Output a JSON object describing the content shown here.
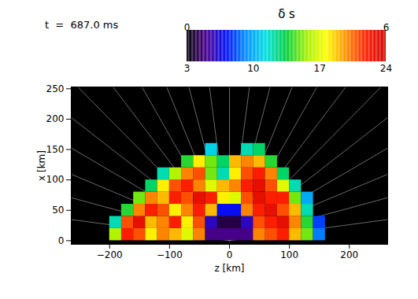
{
  "chart_data": {
    "type": "heatmap",
    "title": "t  =  687.0 ms",
    "xlabel": "z [km]",
    "ylabel": "x [km]",
    "xlim": [
      -264,
      264
    ],
    "xticks": [
      -200,
      -100,
      0,
      100,
      200
    ],
    "ylim": [
      -6,
      253
    ],
    "yticks": [
      0,
      50,
      100,
      150,
      200,
      250
    ],
    "cells": {
      "z": [
        -190,
        -170,
        -150,
        -130,
        -110,
        -90,
        -70,
        -50,
        -30,
        -10,
        10,
        30,
        50,
        70,
        90,
        110,
        130,
        150,
        170
      ],
      "x": [
        10,
        30,
        50,
        70,
        90,
        110,
        130,
        150
      ],
      "values": [
        [
          16,
          22,
          21,
          18,
          20,
          19,
          17,
          20,
          5,
          5,
          5,
          5,
          20,
          21,
          22,
          19,
          15,
          9,
          null
        ],
        [
          12,
          21,
          23,
          19,
          20,
          22,
          18,
          21,
          6,
          4,
          4,
          6,
          21,
          22,
          23,
          20,
          14,
          8,
          null
        ],
        [
          null,
          14,
          20,
          22,
          21,
          18,
          20,
          22,
          19,
          7,
          7,
          20,
          22,
          23,
          21,
          19,
          12,
          null,
          null
        ],
        [
          null,
          null,
          15,
          20,
          19,
          22,
          21,
          23,
          22,
          18,
          17,
          21,
          23,
          22,
          22,
          15,
          10,
          null,
          null
        ],
        [
          null,
          null,
          null,
          13,
          18,
          21,
          22,
          20,
          17,
          19,
          20,
          22,
          23,
          21,
          17,
          12,
          null,
          null,
          null
        ],
        [
          null,
          null,
          null,
          null,
          12,
          16,
          20,
          21,
          15,
          12,
          18,
          21,
          22,
          20,
          13,
          null,
          null,
          null,
          null
        ],
        [
          null,
          null,
          null,
          null,
          null,
          null,
          14,
          18,
          15,
          13,
          19,
          20,
          19,
          14,
          null,
          null,
          null,
          null,
          null
        ],
        [
          null,
          null,
          null,
          null,
          null,
          null,
          null,
          null,
          11,
          null,
          null,
          12,
          13,
          null,
          null,
          null,
          null,
          null,
          null
        ]
      ]
    },
    "colorbar": {
      "label": "δ s",
      "range": [
        3,
        24
      ],
      "ticks": [
        3,
        10,
        17,
        24
      ],
      "range2": [
        0,
        6
      ],
      "ticks2": [
        0,
        6
      ]
    }
  }
}
